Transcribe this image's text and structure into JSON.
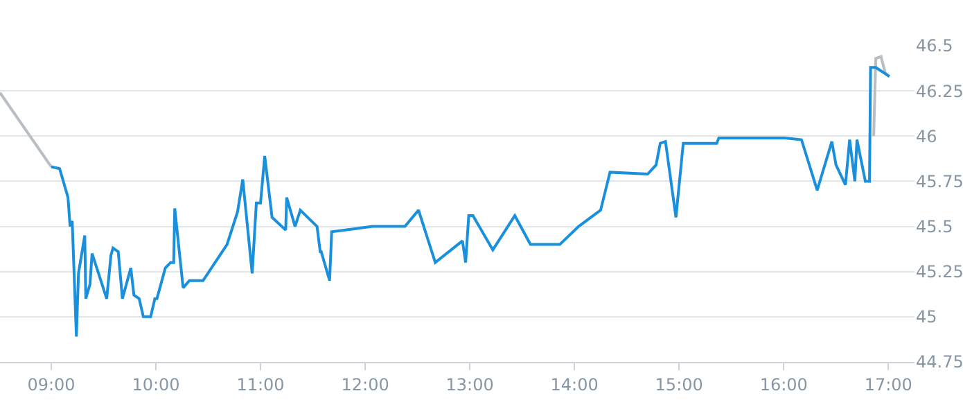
{
  "chart_data": {
    "type": "line",
    "series": [
      {
        "color": "#b8bec4",
        "x": [
          8.51,
          9.0
        ],
        "values": [
          46.24,
          45.83
        ]
      },
      {
        "color": "#b8bec4",
        "x": [
          16.86,
          16.88,
          16.93,
          16.97,
          17.01
        ],
        "values": [
          46.0,
          46.43,
          46.44,
          46.35,
          46.33
        ]
      },
      {
        "color": "#1a8fdc",
        "x": [
          9.0,
          9.08,
          9.16,
          9.18,
          9.2,
          9.24,
          9.26,
          9.32,
          9.33,
          9.37,
          9.39,
          9.53,
          9.57,
          9.59,
          9.64,
          9.68,
          9.76,
          9.79,
          9.84,
          9.88,
          9.95,
          9.99,
          10.01,
          10.09,
          10.14,
          10.17,
          10.18,
          10.26,
          10.32,
          10.45,
          10.68,
          10.78,
          10.83,
          10.92,
          10.96,
          11.0,
          11.04,
          11.11,
          11.24,
          11.25,
          11.33,
          11.38,
          11.54,
          11.57,
          11.58,
          11.66,
          11.68,
          12.07,
          12.38,
          12.51,
          12.67,
          12.93,
          12.96,
          12.99,
          13.03,
          13.22,
          13.43,
          13.58,
          13.86,
          14.04,
          14.25,
          14.34,
          14.7,
          14.78,
          14.82,
          14.87,
          14.97,
          15.04,
          15.36,
          15.38,
          16.01,
          16.17,
          16.32,
          16.46,
          16.5,
          16.59,
          16.63,
          16.68,
          16.7,
          16.78,
          16.82,
          16.83,
          16.88,
          17.01
        ],
        "values": [
          45.83,
          45.82,
          45.66,
          45.5,
          45.53,
          44.89,
          45.24,
          45.45,
          45.1,
          45.18,
          45.35,
          45.1,
          45.34,
          45.38,
          45.36,
          45.1,
          45.27,
          45.12,
          45.1,
          45.0,
          45.0,
          45.1,
          45.1,
          45.27,
          45.3,
          45.3,
          45.6,
          45.16,
          45.2,
          45.2,
          45.4,
          45.58,
          45.76,
          45.24,
          45.63,
          45.63,
          45.89,
          45.55,
          45.48,
          45.66,
          45.5,
          45.59,
          45.5,
          45.36,
          45.36,
          45.2,
          45.47,
          45.5,
          45.5,
          45.59,
          45.3,
          45.42,
          45.3,
          45.56,
          45.56,
          45.37,
          45.56,
          45.4,
          45.4,
          45.5,
          45.59,
          45.8,
          45.79,
          45.84,
          45.96,
          45.97,
          45.55,
          45.96,
          45.96,
          45.99,
          45.99,
          45.98,
          45.7,
          45.97,
          45.84,
          45.73,
          45.98,
          45.75,
          45.98,
          45.75,
          45.75,
          46.38,
          46.38,
          46.33
        ]
      }
    ],
    "xlim": [
      8.51,
      17.25
    ],
    "xticks": [
      {
        "value": 9,
        "label": "09:00"
      },
      {
        "value": 10,
        "label": "10:00"
      },
      {
        "value": 11,
        "label": "11:00"
      },
      {
        "value": 12,
        "label": "12:00"
      },
      {
        "value": 13,
        "label": "13:00"
      },
      {
        "value": 14,
        "label": "14:00"
      },
      {
        "value": 15,
        "label": "15:00"
      },
      {
        "value": 16,
        "label": "16:00"
      },
      {
        "value": 17,
        "label": "17:00"
      }
    ],
    "ylim": [
      44.75,
      46.5
    ],
    "yticks": [
      44.75,
      45,
      45.25,
      45.5,
      45.75,
      46,
      46.25,
      46.5
    ],
    "grid": "y",
    "marker": "none",
    "line_style": "solid"
  }
}
